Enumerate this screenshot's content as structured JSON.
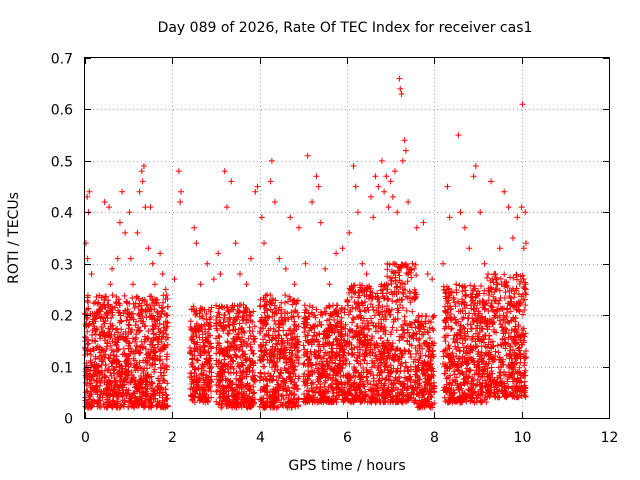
{
  "chart_data": {
    "type": "scatter",
    "title": "Day 089 of 2026, Rate Of TEC Index for receiver cas1",
    "xlabel": "GPS time / hours",
    "ylabel": "ROTI / TECUs",
    "xlim": [
      0,
      12
    ],
    "ylim": [
      0,
      0.7
    ],
    "xticks": [
      0,
      2,
      4,
      6,
      8,
      10,
      12
    ],
    "yticks": [
      0,
      0.1,
      0.2,
      0.3,
      0.4,
      0.5,
      0.6,
      0.7
    ],
    "xtick_labels": [
      "0",
      "2",
      "4",
      "6",
      "8",
      "10",
      "12"
    ],
    "ytick_labels": [
      "0",
      "0.1",
      "0.2",
      "0.3",
      "0.4",
      "0.5",
      "0.6",
      "0.7"
    ],
    "grid": true,
    "marker": "+",
    "color": "#ff0000",
    "series": [
      {
        "name": "ROTI",
        "points": [
          [
            0.02,
            0.34
          ],
          [
            0.05,
            0.43
          ],
          [
            0.08,
            0.4
          ],
          [
            0.1,
            0.44
          ],
          [
            0.06,
            0.31
          ],
          [
            0.15,
            0.28
          ],
          [
            0.45,
            0.42
          ],
          [
            0.55,
            0.41
          ],
          [
            0.58,
            0.26
          ],
          [
            0.62,
            0.29
          ],
          [
            0.75,
            0.31
          ],
          [
            0.8,
            0.38
          ],
          [
            0.85,
            0.44
          ],
          [
            0.92,
            0.36
          ],
          [
            1.02,
            0.4
          ],
          [
            1.05,
            0.31
          ],
          [
            1.1,
            0.26
          ],
          [
            1.2,
            0.36
          ],
          [
            1.25,
            0.44
          ],
          [
            1.3,
            0.48
          ],
          [
            1.32,
            0.46
          ],
          [
            1.35,
            0.49
          ],
          [
            1.38,
            0.41
          ],
          [
            1.45,
            0.33
          ],
          [
            1.5,
            0.41
          ],
          [
            1.55,
            0.3
          ],
          [
            1.6,
            0.26
          ],
          [
            1.72,
            0.32
          ],
          [
            1.78,
            0.28
          ],
          [
            1.85,
            0.25
          ],
          [
            2.05,
            0.27
          ],
          [
            2.15,
            0.48
          ],
          [
            2.18,
            0.42
          ],
          [
            2.2,
            0.44
          ],
          [
            2.5,
            0.37
          ],
          [
            2.55,
            0.34
          ],
          [
            2.65,
            0.26
          ],
          [
            2.8,
            0.3
          ],
          [
            2.95,
            0.27
          ],
          [
            3.05,
            0.32
          ],
          [
            3.1,
            0.28
          ],
          [
            3.2,
            0.48
          ],
          [
            3.25,
            0.41
          ],
          [
            3.35,
            0.46
          ],
          [
            3.45,
            0.34
          ],
          [
            3.55,
            0.28
          ],
          [
            3.7,
            0.26
          ],
          [
            3.8,
            0.31
          ],
          [
            3.9,
            0.44
          ],
          [
            3.95,
            0.45
          ],
          [
            4.05,
            0.39
          ],
          [
            4.1,
            0.34
          ],
          [
            4.25,
            0.46
          ],
          [
            4.28,
            0.5
          ],
          [
            4.35,
            0.42
          ],
          [
            4.45,
            0.31
          ],
          [
            4.6,
            0.29
          ],
          [
            4.7,
            0.39
          ],
          [
            4.8,
            0.26
          ],
          [
            4.9,
            0.37
          ],
          [
            5.05,
            0.3
          ],
          [
            5.1,
            0.51
          ],
          [
            5.2,
            0.42
          ],
          [
            5.3,
            0.47
          ],
          [
            5.35,
            0.45
          ],
          [
            5.4,
            0.38
          ],
          [
            5.5,
            0.29
          ],
          [
            5.6,
            0.26
          ],
          [
            5.75,
            0.32
          ],
          [
            5.9,
            0.33
          ],
          [
            6.05,
            0.36
          ],
          [
            6.15,
            0.49
          ],
          [
            6.2,
            0.45
          ],
          [
            6.25,
            0.4
          ],
          [
            6.35,
            0.3
          ],
          [
            6.45,
            0.28
          ],
          [
            6.55,
            0.43
          ],
          [
            6.6,
            0.39
          ],
          [
            6.65,
            0.47
          ],
          [
            6.72,
            0.45
          ],
          [
            6.8,
            0.5
          ],
          [
            6.85,
            0.44
          ],
          [
            6.9,
            0.47
          ],
          [
            6.95,
            0.41
          ],
          [
            7.0,
            0.46
          ],
          [
            7.05,
            0.43
          ],
          [
            7.1,
            0.48
          ],
          [
            7.15,
            0.4
          ],
          [
            7.2,
            0.66
          ],
          [
            7.22,
            0.64
          ],
          [
            7.25,
            0.63
          ],
          [
            7.28,
            0.5
          ],
          [
            7.32,
            0.54
          ],
          [
            7.35,
            0.52
          ],
          [
            7.4,
            0.42
          ],
          [
            7.5,
            0.3
          ],
          [
            7.6,
            0.37
          ],
          [
            7.75,
            0.38
          ],
          [
            7.85,
            0.28
          ],
          [
            7.95,
            0.27
          ],
          [
            8.2,
            0.3
          ],
          [
            8.3,
            0.45
          ],
          [
            8.35,
            0.39
          ],
          [
            8.5,
            0.26
          ],
          [
            8.55,
            0.55
          ],
          [
            8.6,
            0.4
          ],
          [
            8.7,
            0.37
          ],
          [
            8.8,
            0.33
          ],
          [
            8.9,
            0.47
          ],
          [
            8.95,
            0.49
          ],
          [
            9.05,
            0.4
          ],
          [
            9.15,
            0.3
          ],
          [
            9.3,
            0.46
          ],
          [
            9.4,
            0.28
          ],
          [
            9.5,
            0.33
          ],
          [
            9.6,
            0.44
          ],
          [
            9.7,
            0.41
          ],
          [
            9.8,
            0.35
          ],
          [
            9.9,
            0.39
          ],
          [
            10.0,
            0.41
          ],
          [
            10.02,
            0.61
          ],
          [
            10.05,
            0.33
          ],
          [
            10.08,
            0.4
          ],
          [
            10.1,
            0.34
          ],
          [
            10.03,
            0.24
          ],
          [
            10.06,
            0.21
          ],
          [
            10.09,
            0.26
          ],
          [
            10.0,
            0.16
          ],
          [
            10.05,
            0.12
          ]
        ],
        "dense_band": {
          "description": "dense cluster of ROTI points",
          "segments": [
            [
              0.0,
              1.9,
              0.02,
              0.24
            ],
            [
              2.4,
              2.9,
              0.03,
              0.22
            ],
            [
              3.0,
              3.9,
              0.02,
              0.22
            ],
            [
              4.0,
              4.9,
              0.02,
              0.24
            ],
            [
              5.0,
              6.0,
              0.03,
              0.22
            ],
            [
              6.0,
              6.9,
              0.03,
              0.26
            ],
            [
              6.9,
              7.6,
              0.03,
              0.3
            ],
            [
              7.6,
              8.0,
              0.02,
              0.2
            ],
            [
              8.2,
              9.2,
              0.03,
              0.26
            ],
            [
              9.2,
              10.1,
              0.04,
              0.28
            ]
          ]
        }
      }
    ]
  }
}
